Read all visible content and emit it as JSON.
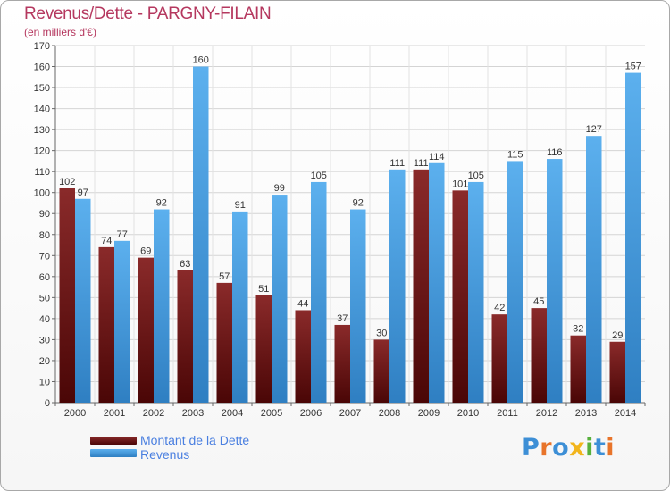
{
  "header": {
    "title": "Revenus/Dette - PARGNY-FILAIN",
    "subtitle": "(en milliers d'€)"
  },
  "legend": {
    "items": [
      {
        "label": "Montant de la Dette",
        "color": "#7a1c1c"
      },
      {
        "label": "Revenus",
        "color": "#4ea6e6"
      }
    ]
  },
  "logo": {
    "text": "Proxiti",
    "letters": [
      {
        "ch": "P",
        "color": "#3d8fd6"
      },
      {
        "ch": "r",
        "color": "#e8742a"
      },
      {
        "ch": "o",
        "color": "#3d8fd6"
      },
      {
        "ch": "x",
        "color": "#f2b51c"
      },
      {
        "ch": "i",
        "color": "#57b03c"
      },
      {
        "ch": "t",
        "color": "#3d8fd6"
      },
      {
        "ch": "i",
        "color": "#e8742a"
      }
    ]
  },
  "chart_data": {
    "type": "bar",
    "title": "Revenus/Dette - PARGNY-FILAIN",
    "ylabel": "(en milliers d'€)",
    "xlabel": "",
    "categories": [
      "2000",
      "2001",
      "2002",
      "2003",
      "2004",
      "2005",
      "2006",
      "2007",
      "2008",
      "2009",
      "2010",
      "2011",
      "2012",
      "2013",
      "2014"
    ],
    "series": [
      {
        "name": "Montant de la Dette",
        "color": "#7a1c1c",
        "values": [
          102,
          74,
          69,
          63,
          57,
          51,
          44,
          37,
          30,
          111,
          101,
          42,
          45,
          32,
          29
        ]
      },
      {
        "name": "Revenus",
        "color": "#4ea6e6",
        "values": [
          97,
          77,
          92,
          160,
          91,
          99,
          105,
          92,
          111,
          114,
          105,
          115,
          116,
          127,
          157
        ]
      }
    ],
    "ylim": [
      0,
      170
    ],
    "yticks": [
      0,
      10,
      20,
      30,
      40,
      50,
      60,
      70,
      80,
      90,
      100,
      110,
      120,
      130,
      140,
      150,
      160,
      170
    ],
    "grid": true,
    "legend_position": "bottom-left"
  }
}
